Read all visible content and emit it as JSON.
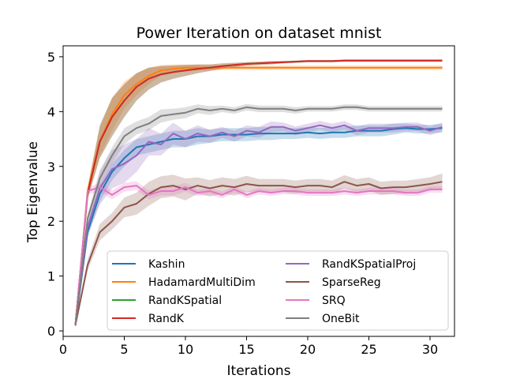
{
  "chart_data": {
    "type": "line",
    "title": "Power Iteration on dataset mnist",
    "xlabel": "Iterations",
    "ylabel": "Top Eigenvalue",
    "xlim": [
      0,
      32
    ],
    "ylim": [
      -0.1,
      5.2
    ],
    "xticks": [
      0,
      5,
      10,
      15,
      20,
      25,
      30
    ],
    "yticks": [
      0,
      1,
      2,
      3,
      4,
      5
    ],
    "grid": false,
    "legend_position": "lower-right",
    "x": [
      1,
      2,
      3,
      4,
      5,
      6,
      7,
      8,
      9,
      10,
      11,
      12,
      13,
      14,
      15,
      16,
      17,
      18,
      19,
      20,
      21,
      22,
      23,
      24,
      25,
      26,
      27,
      28,
      29,
      30,
      31
    ],
    "series": [
      {
        "name": "Kashin",
        "color": "#1f77b4",
        "values": [
          0.1,
          1.8,
          2.5,
          2.9,
          3.15,
          3.35,
          3.4,
          3.45,
          3.5,
          3.5,
          3.55,
          3.55,
          3.58,
          3.58,
          3.58,
          3.6,
          3.6,
          3.6,
          3.6,
          3.62,
          3.6,
          3.62,
          3.62,
          3.65,
          3.65,
          3.65,
          3.68,
          3.7,
          3.68,
          3.68,
          3.7
        ],
        "band": [
          0.03,
          0.1,
          0.15,
          0.15,
          0.15,
          0.15,
          0.15,
          0.15,
          0.15,
          0.15,
          0.15,
          0.12,
          0.12,
          0.12,
          0.12,
          0.12,
          0.12,
          0.1,
          0.1,
          0.1,
          0.1,
          0.1,
          0.1,
          0.1,
          0.1,
          0.1,
          0.1,
          0.08,
          0.08,
          0.08,
          0.08
        ]
      },
      {
        "name": "HadamardMultiDim",
        "color": "#ff7f0e",
        "values": [
          0.1,
          2.55,
          3.45,
          3.95,
          4.3,
          4.5,
          4.65,
          4.75,
          4.78,
          4.8,
          4.8,
          4.8,
          4.8,
          4.8,
          4.8,
          4.8,
          4.8,
          4.8,
          4.8,
          4.8,
          4.8,
          4.8,
          4.8,
          4.8,
          4.8,
          4.8,
          4.8,
          4.8,
          4.8,
          4.8,
          4.8
        ],
        "band": [
          0.03,
          0.1,
          0.25,
          0.3,
          0.25,
          0.2,
          0.15,
          0.1,
          0.08,
          0.06,
          0.05,
          0.05,
          0.04,
          0.04,
          0.04,
          0.04,
          0.04,
          0.04,
          0.04,
          0.04,
          0.04,
          0.04,
          0.04,
          0.04,
          0.04,
          0.04,
          0.04,
          0.04,
          0.04,
          0.04,
          0.04
        ]
      },
      {
        "name": "RandKSpatial",
        "color": "#2ca02c",
        "values": [
          0.1,
          2.5,
          3.45,
          3.9,
          4.2,
          4.45,
          4.6,
          4.68,
          4.72,
          4.75,
          4.78,
          4.8,
          4.83,
          4.85,
          4.87,
          4.88,
          4.89,
          4.9,
          4.91,
          4.92,
          4.92,
          4.92,
          4.93,
          4.93,
          4.93,
          4.93,
          4.93,
          4.93,
          4.93,
          4.93,
          4.93
        ],
        "band": [
          0.03,
          0.1,
          0.3,
          0.35,
          0.3,
          0.25,
          0.2,
          0.15,
          0.12,
          0.1,
          0.08,
          0.06,
          0.05,
          0.04,
          0.03,
          0.03,
          0.03,
          0.02,
          0.02,
          0.02,
          0.02,
          0.02,
          0.02,
          0.02,
          0.02,
          0.02,
          0.02,
          0.02,
          0.02,
          0.02,
          0.02
        ]
      },
      {
        "name": "RandK",
        "color": "#d62728",
        "values": [
          0.1,
          2.5,
          3.45,
          3.9,
          4.2,
          4.45,
          4.6,
          4.68,
          4.72,
          4.75,
          4.78,
          4.8,
          4.83,
          4.85,
          4.87,
          4.88,
          4.89,
          4.9,
          4.91,
          4.92,
          4.92,
          4.92,
          4.93,
          4.93,
          4.93,
          4.93,
          4.93,
          4.93,
          4.93,
          4.93,
          4.93
        ],
        "band": [
          0.03,
          0.1,
          0.3,
          0.35,
          0.3,
          0.25,
          0.2,
          0.15,
          0.12,
          0.1,
          0.08,
          0.06,
          0.05,
          0.04,
          0.03,
          0.03,
          0.03,
          0.02,
          0.02,
          0.02,
          0.02,
          0.02,
          0.02,
          0.02,
          0.02,
          0.02,
          0.02,
          0.02,
          0.02,
          0.02,
          0.02
        ]
      },
      {
        "name": "RandKSpatialProj",
        "color": "#9467bd",
        "values": [
          0.1,
          1.9,
          2.6,
          2.95,
          3.05,
          3.2,
          3.45,
          3.4,
          3.6,
          3.5,
          3.6,
          3.55,
          3.62,
          3.55,
          3.65,
          3.62,
          3.72,
          3.72,
          3.65,
          3.7,
          3.75,
          3.7,
          3.75,
          3.65,
          3.7,
          3.7,
          3.7,
          3.72,
          3.72,
          3.65,
          3.72
        ],
        "band": [
          0.03,
          0.15,
          0.3,
          0.35,
          0.35,
          0.3,
          0.25,
          0.2,
          0.2,
          0.15,
          0.15,
          0.12,
          0.1,
          0.1,
          0.1,
          0.1,
          0.1,
          0.08,
          0.08,
          0.08,
          0.08,
          0.08,
          0.08,
          0.08,
          0.08,
          0.08,
          0.08,
          0.08,
          0.08,
          0.08,
          0.08
        ]
      },
      {
        "name": "SparseReg",
        "color": "#8c564b",
        "values": [
          0.1,
          1.2,
          1.8,
          2.0,
          2.25,
          2.32,
          2.5,
          2.62,
          2.65,
          2.58,
          2.65,
          2.6,
          2.65,
          2.62,
          2.68,
          2.65,
          2.65,
          2.65,
          2.62,
          2.65,
          2.65,
          2.62,
          2.72,
          2.65,
          2.68,
          2.6,
          2.62,
          2.62,
          2.65,
          2.68,
          2.72
        ],
        "band": [
          0.03,
          0.1,
          0.15,
          0.15,
          0.18,
          0.2,
          0.22,
          0.2,
          0.2,
          0.2,
          0.15,
          0.15,
          0.15,
          0.15,
          0.15,
          0.12,
          0.12,
          0.12,
          0.12,
          0.12,
          0.12,
          0.12,
          0.12,
          0.12,
          0.12,
          0.12,
          0.12,
          0.12,
          0.12,
          0.12,
          0.15
        ]
      },
      {
        "name": "SRQ",
        "color": "#e377c2",
        "values": [
          0.1,
          2.55,
          2.62,
          2.48,
          2.62,
          2.65,
          2.48,
          2.55,
          2.55,
          2.62,
          2.52,
          2.55,
          2.48,
          2.58,
          2.48,
          2.55,
          2.52,
          2.55,
          2.55,
          2.52,
          2.52,
          2.52,
          2.55,
          2.52,
          2.55,
          2.55,
          2.55,
          2.52,
          2.52,
          2.58,
          2.58
        ],
        "band": [
          0.03,
          0.06,
          0.08,
          0.08,
          0.08,
          0.08,
          0.08,
          0.08,
          0.08,
          0.08,
          0.06,
          0.06,
          0.06,
          0.06,
          0.06,
          0.06,
          0.06,
          0.06,
          0.06,
          0.06,
          0.06,
          0.06,
          0.06,
          0.06,
          0.06,
          0.06,
          0.06,
          0.06,
          0.06,
          0.06,
          0.06
        ]
      },
      {
        "name": "OneBit",
        "color": "#7f7f7f",
        "values": [
          0.1,
          2.05,
          2.78,
          3.2,
          3.55,
          3.7,
          3.78,
          3.92,
          3.95,
          3.98,
          4.05,
          4.02,
          4.05,
          4.02,
          4.08,
          4.05,
          4.05,
          4.05,
          4.02,
          4.05,
          4.05,
          4.05,
          4.08,
          4.08,
          4.05,
          4.05,
          4.05,
          4.05,
          4.05,
          4.05,
          4.05
        ],
        "band": [
          0.03,
          0.08,
          0.15,
          0.15,
          0.15,
          0.12,
          0.12,
          0.12,
          0.1,
          0.1,
          0.08,
          0.08,
          0.06,
          0.06,
          0.06,
          0.06,
          0.06,
          0.06,
          0.06,
          0.05,
          0.05,
          0.05,
          0.05,
          0.05,
          0.05,
          0.05,
          0.05,
          0.05,
          0.05,
          0.05,
          0.05
        ]
      }
    ]
  }
}
